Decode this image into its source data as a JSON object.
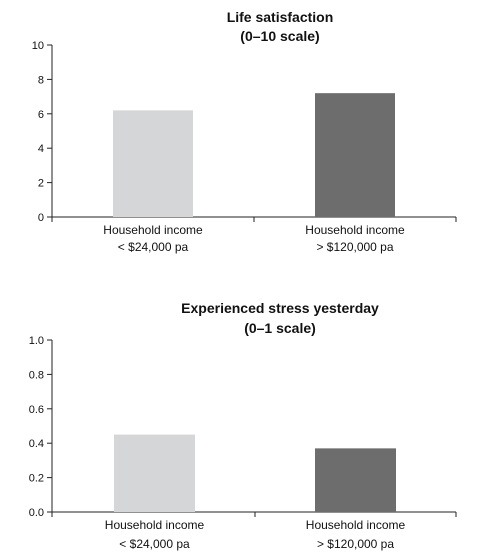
{
  "chart_data": [
    {
      "type": "bar",
      "title": [
        "Life satisfaction",
        "(0–10 scale)"
      ],
      "categories": [
        [
          "Household income",
          "< $24,000 pa"
        ],
        [
          "Household income",
          "> $120,000 pa"
        ]
      ],
      "values": [
        6.2,
        7.2
      ],
      "colors": [
        "#d4d6d8",
        "#6d6d6d"
      ],
      "ylim": [
        0,
        10
      ],
      "yticks": [
        0,
        2,
        4,
        6,
        8,
        10
      ],
      "ytick_labels": [
        "0",
        "2",
        "4",
        "6",
        "8",
        "10"
      ],
      "xlabel": "",
      "ylabel": "",
      "grid": false,
      "legend": "none"
    },
    {
      "type": "bar",
      "title": [
        "Experienced stress yesterday",
        "(0–1 scale)"
      ],
      "categories": [
        [
          "Household income",
          "< $24,000 pa"
        ],
        [
          "Household income",
          "> $120,000 pa"
        ]
      ],
      "values": [
        0.45,
        0.37
      ],
      "colors": [
        "#d4d6d8",
        "#6d6d6d"
      ],
      "ylim": [
        0,
        1
      ],
      "yticks": [
        0,
        0.2,
        0.4,
        0.6,
        0.8,
        1.0
      ],
      "ytick_labels": [
        "0.0",
        "0.2",
        "0.4",
        "0.6",
        "0.8",
        "1.0"
      ],
      "xlabel": "",
      "ylabel": "",
      "grid": false,
      "legend": "none"
    }
  ]
}
